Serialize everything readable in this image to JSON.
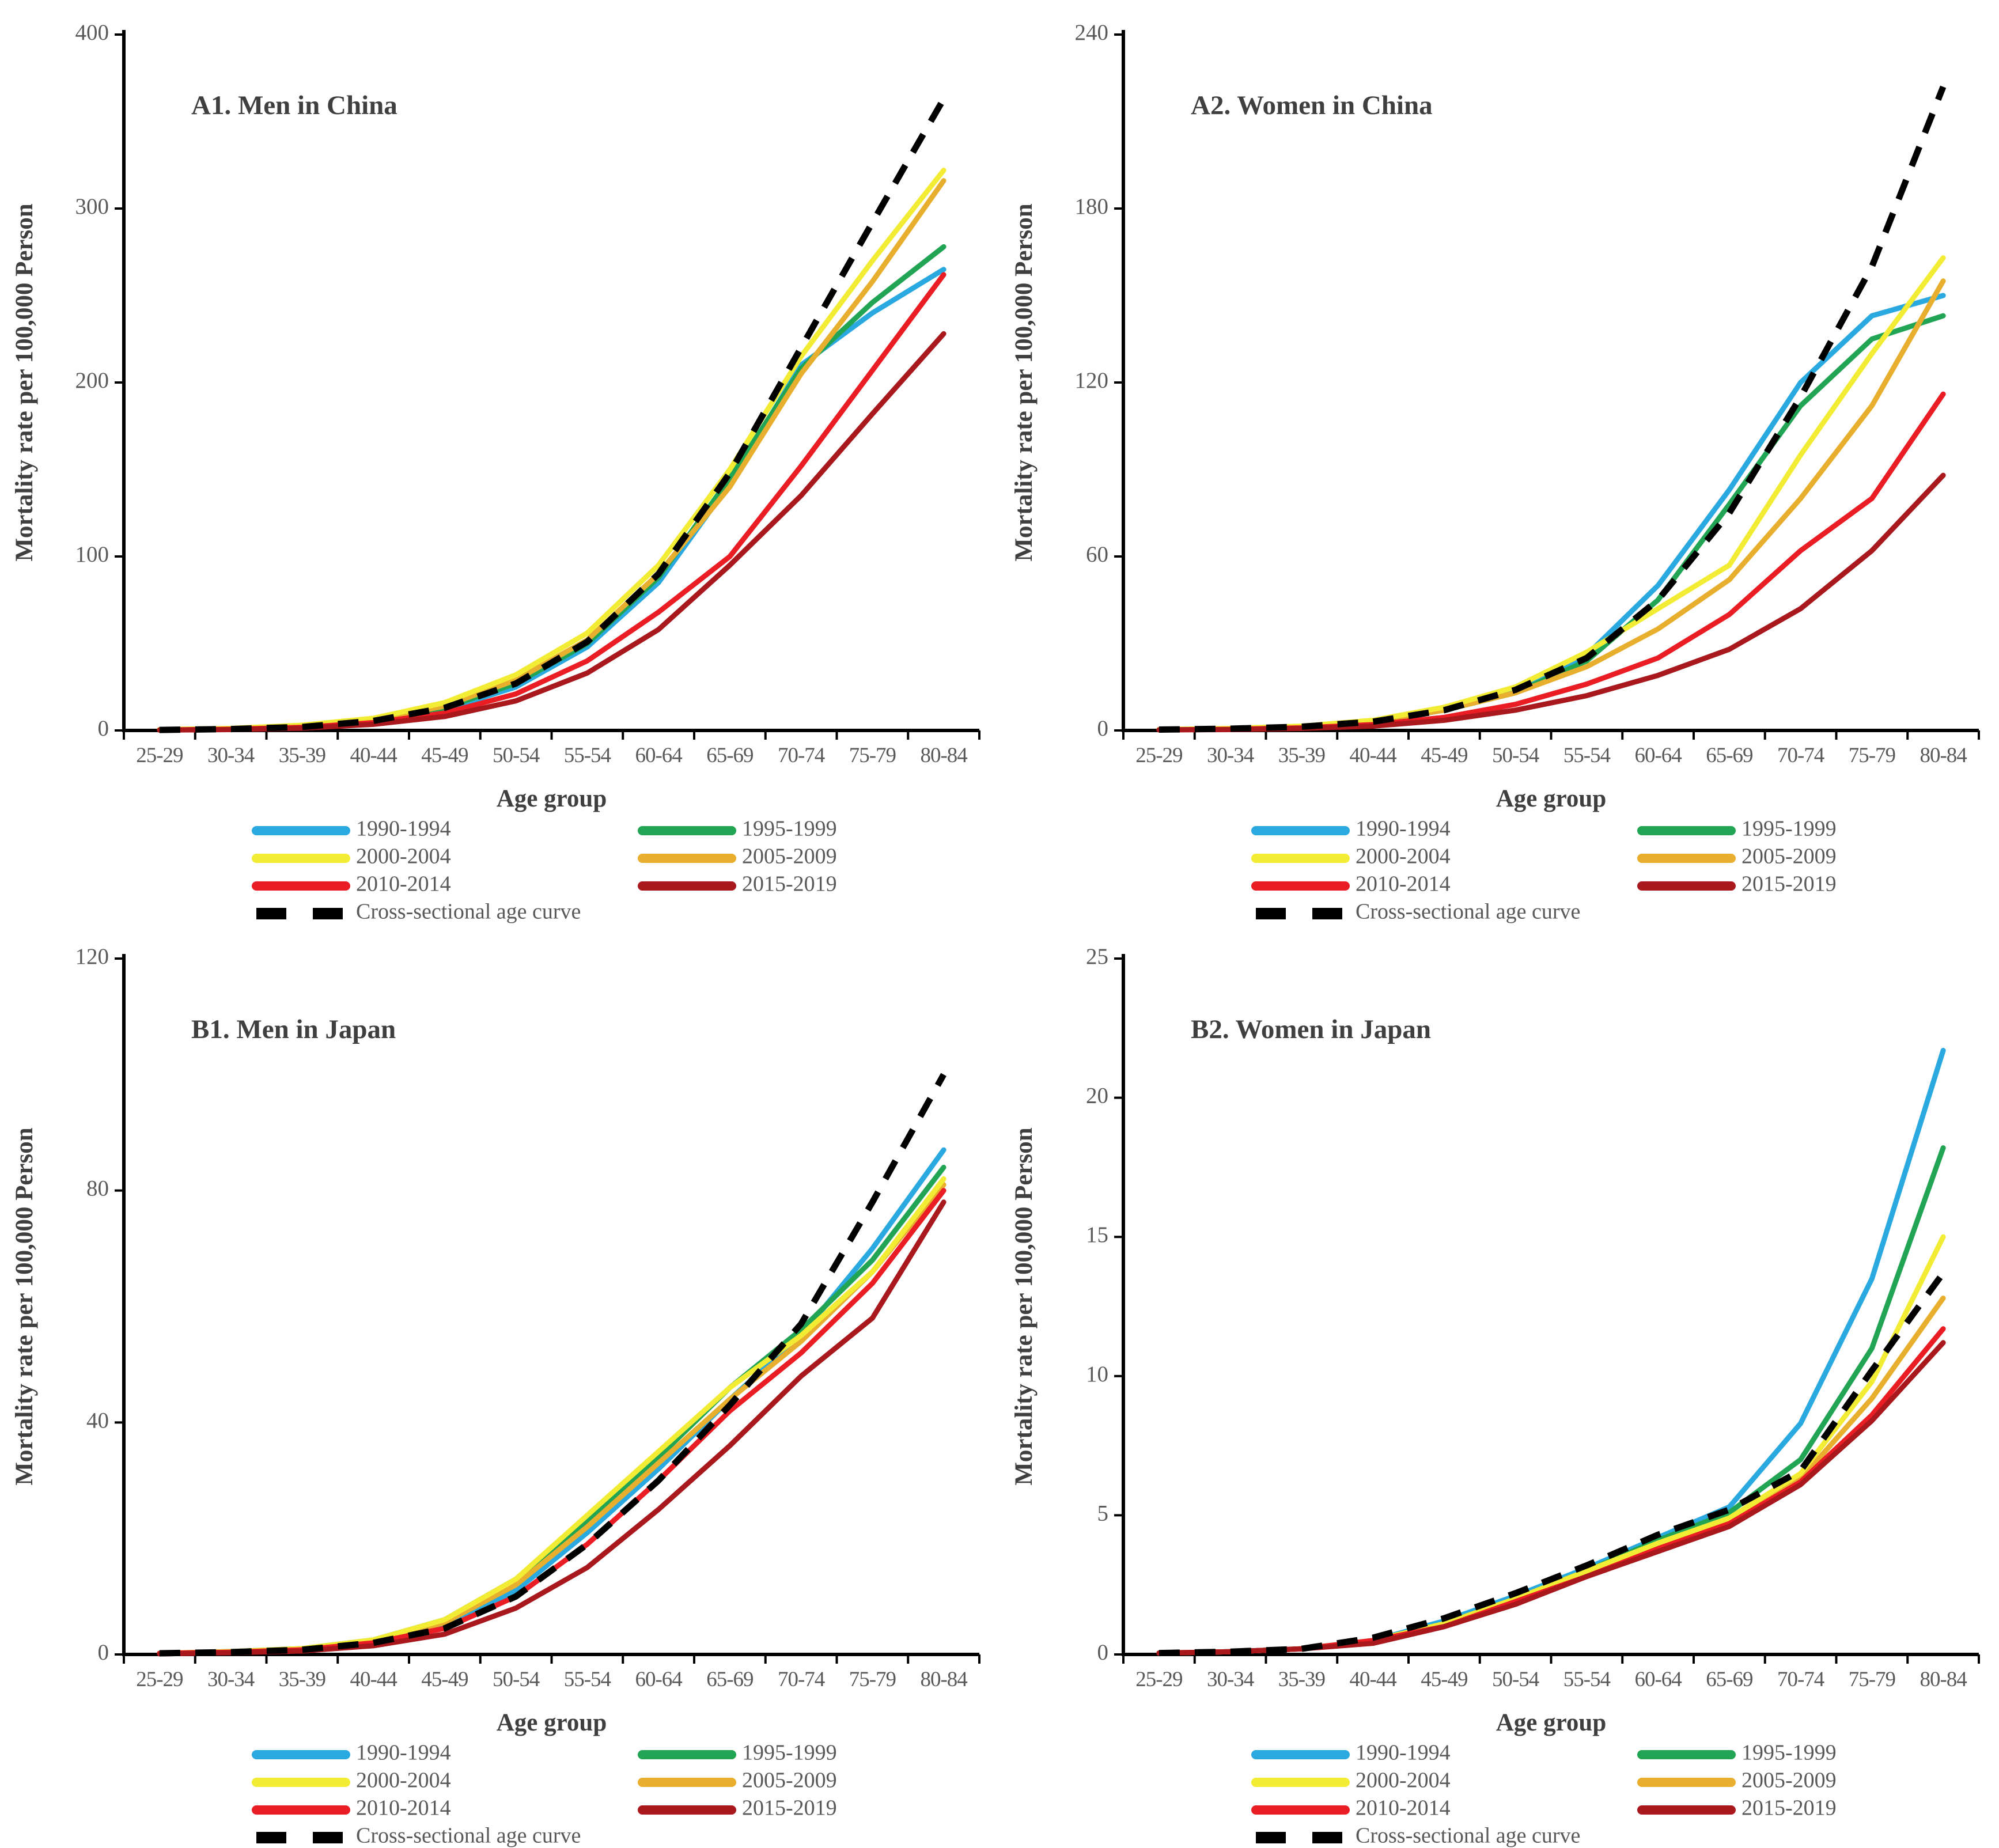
{
  "figure": {
    "panel_ids": [
      "A1",
      "A2",
      "B1",
      "B2"
    ]
  },
  "legend": {
    "entries": [
      {
        "label": "1990-1994",
        "color": "#29A9DF",
        "dashed": false
      },
      {
        "label": "1995-1999",
        "color": "#21A453",
        "dashed": false
      },
      {
        "label": "2000-2004",
        "color": "#F3EC34",
        "dashed": false
      },
      {
        "label": "2005-2009",
        "color": "#E8AF2E",
        "dashed": false
      },
      {
        "label": "2010-2014",
        "color": "#EA1C24",
        "dashed": false
      },
      {
        "label": "2015-2019",
        "color": "#A8181D",
        "dashed": false
      },
      {
        "label": "Cross-sectional age curve",
        "color": "#000000",
        "dashed": true
      }
    ]
  },
  "axis": {
    "xlabel": "Age group",
    "ylabel": "Mortality rate per 100,000 Person",
    "categories": [
      "25-29",
      "30-34",
      "35-39",
      "40-44",
      "45-49",
      "50-54",
      "55-54",
      "60-64",
      "65-69",
      "70-74",
      "75-79",
      "80-84"
    ]
  },
  "chart_data": [
    {
      "id": "A1",
      "type": "line",
      "title": "A1. Men in China",
      "xlabel": "Age group",
      "ylabel": "Mortality rate per 100,000 Person",
      "categories": [
        "25-29",
        "30-34",
        "35-39",
        "40-44",
        "45-49",
        "50-54",
        "55-54",
        "60-64",
        "65-69",
        "70-74",
        "75-79",
        "80-84"
      ],
      "ylim": [
        0,
        400
      ],
      "yticks": [
        0,
        100,
        200,
        300,
        400
      ],
      "grid": false,
      "legend_position": "bottom",
      "series": [
        {
          "name": "1990-1994",
          "values": [
            0.4,
            0.8,
            2,
            5,
            12,
            25,
            48,
            85,
            142,
            210,
            240,
            265
          ],
          "zorder": 1
        },
        {
          "name": "1995-1999",
          "values": [
            0.4,
            0.9,
            2.2,
            5.5,
            13,
            27,
            50,
            88,
            145,
            208,
            246,
            278
          ],
          "zorder": 2
        },
        {
          "name": "2005-2009",
          "values": [
            0.4,
            1,
            2.5,
            6,
            14,
            29,
            52,
            90,
            140,
            205,
            258,
            316
          ],
          "zorder": 3
        },
        {
          "name": "2000-2004",
          "values": [
            0.5,
            1.2,
            3,
            7,
            16,
            32,
            56,
            95,
            150,
            215,
            270,
            322
          ],
          "zorder": 4
        },
        {
          "name": "2010-2014",
          "values": [
            0.3,
            0.7,
            1.8,
            4.5,
            10,
            21,
            40,
            68,
            100,
            152,
            207,
            262
          ],
          "zorder": 5
        },
        {
          "name": "2015-2019",
          "values": [
            0.2,
            0.5,
            1.3,
            3.5,
            8,
            17,
            33,
            58,
            95,
            135,
            182,
            228
          ],
          "zorder": 6
        },
        {
          "name": "Cross-sectional age curve",
          "values": [
            0.3,
            0.8,
            2,
            5.5,
            13,
            27,
            51,
            90,
            148,
            220,
            292,
            363
          ],
          "zorder": 7
        }
      ]
    },
    {
      "id": "A2",
      "type": "line",
      "title": "A2. Women in China",
      "xlabel": "Age group",
      "ylabel": "Mortality rate per 100,000 Person",
      "categories": [
        "25-29",
        "30-34",
        "35-39",
        "40-44",
        "45-49",
        "50-54",
        "55-54",
        "60-64",
        "65-69",
        "70-74",
        "75-79",
        "80-84"
      ],
      "ylim": [
        0,
        240
      ],
      "yticks": [
        0,
        60,
        120,
        180,
        240
      ],
      "grid": false,
      "legend_position": "bottom",
      "series": [
        {
          "name": "1990-1994",
          "values": [
            0.3,
            0.6,
            1.2,
            3,
            7,
            14,
            26,
            50,
            83,
            120,
            143,
            150
          ],
          "zorder": 1
        },
        {
          "name": "1995-1999",
          "values": [
            0.3,
            0.6,
            1.2,
            3,
            7,
            13,
            24,
            45,
            78,
            112,
            135,
            143
          ],
          "zorder": 2
        },
        {
          "name": "2005-2009",
          "values": [
            0.3,
            0.6,
            1.3,
            3,
            7,
            13,
            22,
            35,
            52,
            80,
            112,
            155
          ],
          "zorder": 3
        },
        {
          "name": "2000-2004",
          "values": [
            0.3,
            0.7,
            1.5,
            3.5,
            8,
            15,
            27,
            42,
            57,
            95,
            130,
            163
          ],
          "zorder": 4
        },
        {
          "name": "2010-2014",
          "values": [
            0.2,
            0.4,
            0.9,
            2,
            4.5,
            9,
            16,
            25,
            40,
            62,
            80,
            116
          ],
          "zorder": 5
        },
        {
          "name": "2015-2019",
          "values": [
            0.2,
            0.3,
            0.7,
            1.5,
            3.5,
            7,
            12,
            19,
            28,
            42,
            62,
            88
          ],
          "zorder": 6
        },
        {
          "name": "Cross-sectional age curve",
          "values": [
            0.3,
            0.6,
            1.3,
            3,
            7,
            14,
            25,
            45,
            75,
            115,
            160,
            222
          ],
          "zorder": 7
        }
      ]
    },
    {
      "id": "B1",
      "type": "line",
      "title": "B1. Men in Japan",
      "xlabel": "Age group",
      "ylabel": "Mortality rate per 100,000 Person",
      "categories": [
        "25-29",
        "30-34",
        "35-39",
        "40-44",
        "45-49",
        "50-54",
        "55-54",
        "60-64",
        "65-69",
        "70-74",
        "75-79",
        "80-84"
      ],
      "ylim": [
        0,
        120
      ],
      "yticks": [
        0,
        40,
        80,
        120
      ],
      "grid": false,
      "legend_position": "bottom",
      "series": [
        {
          "name": "1990-1994",
          "values": [
            0.2,
            0.4,
            0.8,
            2,
            5,
            11,
            21,
            32,
            44,
            55,
            70,
            87
          ],
          "zorder": 1
        },
        {
          "name": "1995-1999",
          "values": [
            0.2,
            0.5,
            1,
            2.5,
            6,
            13,
            23,
            34,
            46,
            56,
            68,
            84
          ],
          "zorder": 2
        },
        {
          "name": "2005-2009",
          "values": [
            0.2,
            0.4,
            0.9,
            2.2,
            5.5,
            12,
            22,
            33,
            44,
            54,
            66,
            81
          ],
          "zorder": 3
        },
        {
          "name": "2000-2004",
          "values": [
            0.2,
            0.5,
            1,
            2.5,
            6,
            13,
            24,
            35,
            46,
            55,
            66,
            82
          ],
          "zorder": 4
        },
        {
          "name": "2010-2014",
          "values": [
            0.2,
            0.4,
            0.8,
            2,
            4.5,
            10,
            19,
            30,
            42,
            52,
            64,
            80
          ],
          "zorder": 5
        },
        {
          "name": "2015-2019",
          "values": [
            0.1,
            0.3,
            0.6,
            1.5,
            3.5,
            8,
            15,
            25,
            36,
            48,
            58,
            78
          ],
          "zorder": 6
        },
        {
          "name": "Cross-sectional age curve",
          "values": [
            0.2,
            0.4,
            0.8,
            2,
            4.5,
            10,
            19,
            30,
            43,
            57,
            78,
            100
          ],
          "zorder": 7
        }
      ]
    },
    {
      "id": "B2",
      "type": "line",
      "title": "B2. Women in Japan",
      "xlabel": "Age group",
      "ylabel": "Mortality rate per 100,000 Person",
      "categories": [
        "25-29",
        "30-34",
        "35-39",
        "40-44",
        "45-49",
        "50-54",
        "55-54",
        "60-64",
        "65-69",
        "70-74",
        "75-79",
        "80-84"
      ],
      "ylim": [
        0,
        25
      ],
      "yticks": [
        0,
        5,
        10,
        15,
        20,
        25
      ],
      "grid": false,
      "legend_position": "bottom",
      "series": [
        {
          "name": "1990-1994",
          "values": [
            0.05,
            0.1,
            0.2,
            0.5,
            1.2,
            2.1,
            3.1,
            4.2,
            5.3,
            8.3,
            13.5,
            21.7
          ],
          "zorder": 1
        },
        {
          "name": "1995-1999",
          "values": [
            0.05,
            0.1,
            0.2,
            0.5,
            1.1,
            2,
            3,
            4.1,
            5.1,
            7,
            11,
            18.2
          ],
          "zorder": 2
        },
        {
          "name": "2005-2009",
          "values": [
            0.05,
            0.1,
            0.2,
            0.5,
            1.1,
            1.9,
            2.9,
            3.9,
            4.8,
            6.3,
            9.2,
            12.8
          ],
          "zorder": 3
        },
        {
          "name": "2000-2004",
          "values": [
            0.05,
            0.1,
            0.2,
            0.5,
            1.1,
            2,
            3,
            4,
            4.9,
            6.5,
            9.8,
            15
          ],
          "zorder": 4
        },
        {
          "name": "2010-2014",
          "values": [
            0.05,
            0.1,
            0.2,
            0.5,
            1,
            1.9,
            2.8,
            3.8,
            4.7,
            6.2,
            8.6,
            11.7
          ],
          "zorder": 5
        },
        {
          "name": "2015-2019",
          "values": [
            0.05,
            0.1,
            0.2,
            0.4,
            1,
            1.8,
            2.8,
            3.7,
            4.6,
            6.1,
            8.4,
            11.2
          ],
          "zorder": 6
        },
        {
          "name": "Cross-sectional age curve",
          "values": [
            0.05,
            0.1,
            0.2,
            0.6,
            1.3,
            2.2,
            3.2,
            4.3,
            5.2,
            6.6,
            10.2,
            13.7
          ],
          "zorder": 7
        }
      ]
    }
  ]
}
